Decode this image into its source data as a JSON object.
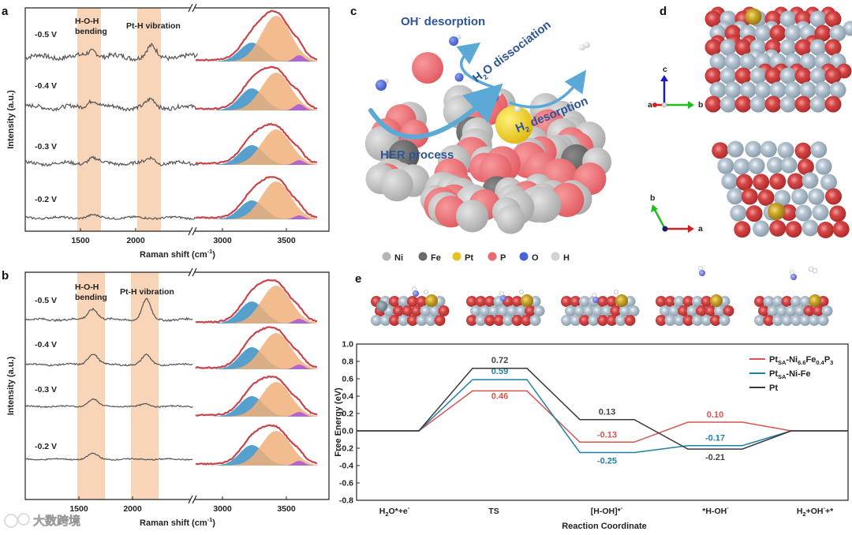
{
  "panel_labels": {
    "a": "a",
    "b": "b",
    "c": "c",
    "d": "d",
    "e": "e"
  },
  "raman": {
    "ylabel": "Intensity (a.u.)",
    "xlabel": {
      "main": "Raman shift (cm",
      "sup": "-1",
      "close": ")"
    },
    "break_mark": "//",
    "x_ticks": [
      "1500",
      "2000",
      "3000",
      "3500"
    ],
    "band_hoh": {
      "line1": "H-O-H",
      "line2": "bending"
    },
    "band_pth": "Pt-H vibration",
    "voltages": [
      "-0.5 V",
      "-0.4 V",
      "-0.3 V",
      "-0.2 V"
    ],
    "colors": {
      "trace": "#555555",
      "band": "#f8d5b8",
      "fit_blue": "#3a8fc4",
      "fit_orange": "#f0b07a",
      "fit_purple": "#a855d8",
      "envelope": "#c9444a"
    }
  },
  "panel_c": {
    "labels": {
      "oh_desorption": {
        "main": "OH",
        "sup": "-",
        "rest": " desorption"
      },
      "h2o_dissociation": {
        "main": "H",
        "sub": "2",
        "rest": "O dissociation"
      },
      "h2_desorption": {
        "main": "H",
        "sub": "2",
        "rest": " desorption"
      },
      "her_process": "HER process"
    },
    "legend": [
      {
        "label": "Ni",
        "color": "#b5b5b5"
      },
      {
        "label": "Fe",
        "color": "#6b6b6b"
      },
      {
        "label": "Pt",
        "color": "#e6c31c"
      },
      {
        "label": "P",
        "color": "#ec6a6f"
      },
      {
        "label": "O",
        "color": "#4a63d6"
      },
      {
        "label": "H",
        "color": "#d2d2d2"
      }
    ]
  },
  "panel_d": {
    "axes_top": {
      "a": "a",
      "b": "b",
      "c": "c"
    },
    "axes_bottom": {
      "a": "a",
      "b": "b"
    }
  },
  "chart_data": {
    "type": "line",
    "title": "",
    "xlabel": "Reaction Coordinate",
    "ylabel": "Free Energy (eV)",
    "ylim": [
      -0.8,
      1.0
    ],
    "y_ticks": [
      "1.0",
      "0.8",
      "0.6",
      "0.4",
      "0.2",
      "0.0",
      "-0.2",
      "-0.4",
      "-0.6",
      "-0.8"
    ],
    "categories": [
      [
        [
          "H",
          ""
        ],
        [
          "2",
          "sub"
        ],
        [
          "O*+e",
          ""
        ],
        [
          "-",
          "sup"
        ]
      ],
      [
        [
          "TS",
          ""
        ]
      ],
      [
        [
          "[H-OH]*",
          ""
        ],
        [
          "-",
          "sup"
        ]
      ],
      [
        [
          "*H-OH",
          ""
        ],
        [
          "-",
          "sup"
        ]
      ],
      [
        [
          "H",
          ""
        ],
        [
          "2",
          "sub"
        ],
        [
          "+OH",
          ""
        ],
        [
          "-",
          "sup"
        ],
        [
          "+*",
          ""
        ]
      ]
    ],
    "legend_position": "top-right",
    "series": [
      {
        "name": [
          [
            "Pt",
            ""
          ],
          [
            "SA",
            "sub"
          ],
          [
            "-Ni",
            ""
          ],
          [
            "6.6",
            "sub"
          ],
          [
            "Fe",
            ""
          ],
          [
            "0.4",
            "sub"
          ],
          [
            "P",
            ""
          ],
          [
            "3",
            "sub"
          ]
        ],
        "color": "#d9534f",
        "values": [
          0,
          0.46,
          -0.13,
          0.1,
          0
        ],
        "labels": [
          "",
          "0.46",
          "-0.13",
          "0.10",
          ""
        ]
      },
      {
        "name": [
          [
            "Pt",
            ""
          ],
          [
            "SA",
            "sub"
          ],
          [
            "-Ni-Fe",
            ""
          ]
        ],
        "color": "#1f7fa8",
        "values": [
          0,
          0.59,
          -0.25,
          -0.17,
          0
        ],
        "labels": [
          "",
          "0.59",
          "-0.25",
          "-0.17",
          ""
        ]
      },
      {
        "name": [
          [
            "Pt",
            ""
          ]
        ],
        "color": "#3a3a3a",
        "values": [
          0,
          0.72,
          0.13,
          -0.21,
          0
        ],
        "labels": [
          "",
          "0.72",
          "0.13",
          "-0.21",
          ""
        ]
      }
    ]
  },
  "watermark": "大数跨境"
}
